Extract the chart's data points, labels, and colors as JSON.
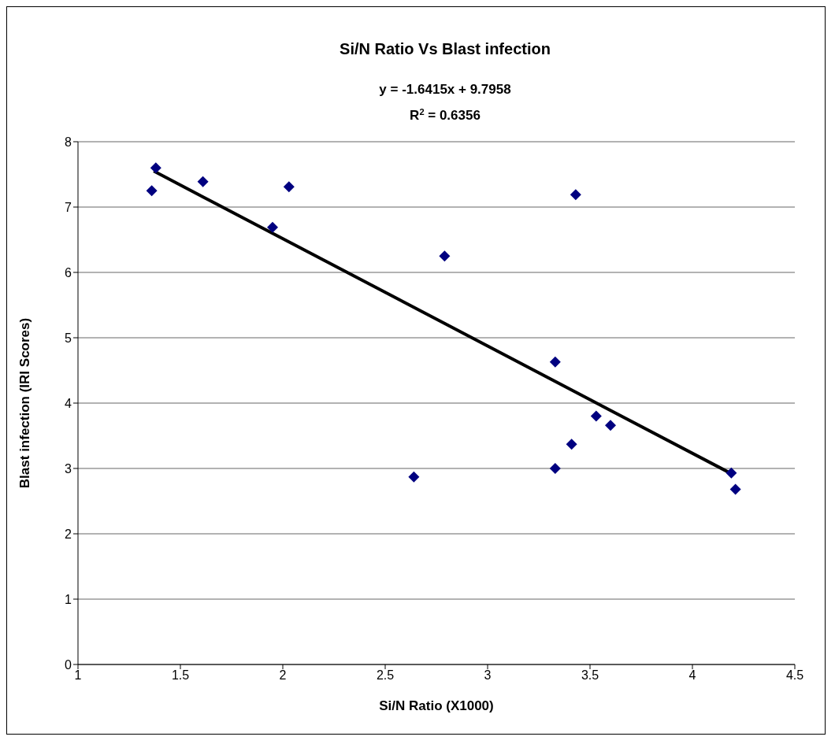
{
  "chart_data": {
    "type": "scatter",
    "title": "Si/N Ratio Vs Blast infection",
    "xlabel": "Si/N Ratio (X1000)",
    "ylabel": "Blast infection (IRI Scores)",
    "annotations": [
      "y = -1.6415x + 9.7958",
      "R$^{2}$ = 0.6356"
    ],
    "xlim": [
      1,
      4.5
    ],
    "xticks": [
      1,
      1.5,
      2,
      2.5,
      3,
      3.5,
      4,
      4.5
    ],
    "ylim": [
      0,
      8
    ],
    "yticks": [
      0,
      1,
      2,
      3,
      4,
      5,
      6,
      7,
      8
    ],
    "grid": "y",
    "marker": "diamond",
    "series": [
      {
        "color": "#000080",
        "x": [
          1.38,
          1.36,
          1.61,
          1.95,
          2.03,
          2.79,
          2.64,
          3.33,
          3.33,
          3.43,
          3.53,
          3.6,
          3.41,
          4.19,
          4.21
        ],
        "values": [
          7.6,
          7.25,
          7.39,
          6.69,
          7.31,
          6.25,
          2.87,
          4.63,
          3.0,
          7.19,
          3.8,
          3.66,
          3.37,
          2.93,
          2.68
        ]
      },
      {
        "type": "line",
        "color": "#000000",
        "marker": "none",
        "x": [
          1.37,
          4.19
        ],
        "values": [
          7.55,
          2.92
        ]
      }
    ]
  }
}
